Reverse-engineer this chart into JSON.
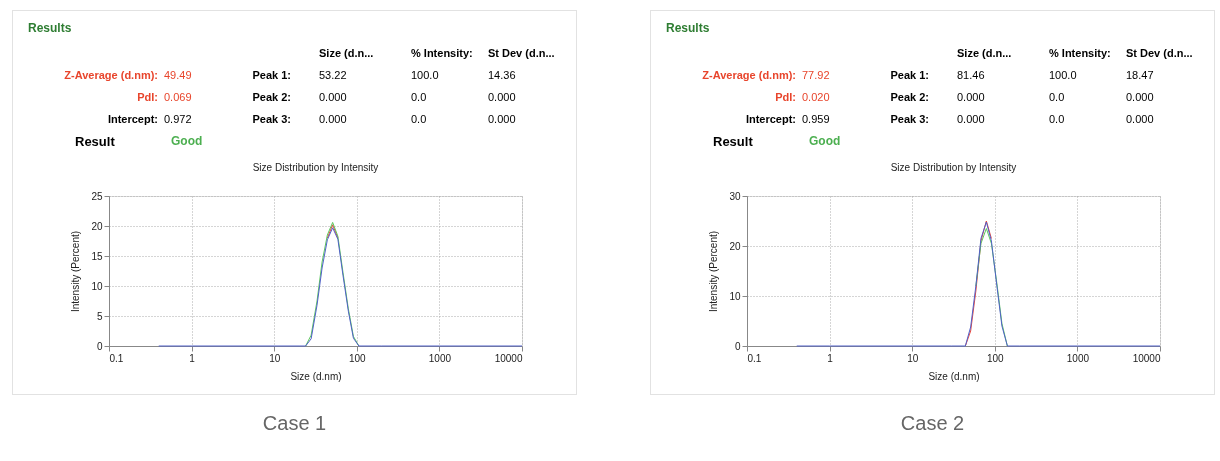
{
  "chart_data": [
    {
      "type": "other",
      "title": "Results",
      "annotations": [
        "Size (d.n...",
        "% Intensity:",
        "St Dev (d.n...",
        "Z-Average (d.nm):",
        "49.49",
        "Peak 1:",
        "53.22",
        "100.0",
        "14.36",
        "PdI:",
        "0.069",
        "Peak 2:",
        "0.000",
        "0.0",
        "0.000",
        "Intercept:",
        "0.972",
        "Peak 3:",
        "0.000",
        "0.0",
        "0.000",
        "Result",
        "Good"
      ]
    },
    {
      "type": "line",
      "title": "Size Distribution by Intensity",
      "xlabel": "Size (d.nm)",
      "ylabel": "Intensity (Percent)",
      "annotations": [
        "Case 1"
      ],
      "log": "x",
      "grid": true,
      "x": [
        0.4,
        1,
        10,
        20,
        24,
        28,
        33,
        38,
        44,
        51,
        59,
        68,
        79,
        91,
        106,
        200,
        1000,
        10000
      ],
      "xlim": [
        0.1,
        10000
      ],
      "xticks": [
        0.1,
        1,
        10,
        100,
        1000,
        10000
      ],
      "ylim": [
        0,
        25
      ],
      "yticks": [
        0,
        5,
        10,
        15,
        20,
        25
      ],
      "series": [
        {
          "color": "#e8453c",
          "values": [
            null,
            null,
            null,
            null,
            null,
            null,
            null,
            null,
            18,
            20.2,
            18,
            null,
            null,
            null,
            null,
            null,
            null,
            null
          ]
        },
        {
          "color": "#5cc85c",
          "values": [
            null,
            null,
            null,
            null,
            0,
            1.8,
            7.5,
            14,
            18.5,
            20.6,
            18.3,
            12.3,
            6.2,
            1.6,
            0,
            null,
            null,
            null
          ]
        },
        {
          "color": "#5060c8",
          "values": [
            0,
            0,
            0,
            0,
            0,
            1.2,
            6.8,
            13,
            17.7,
            19.7,
            17.8,
            11.8,
            5.8,
            1.3,
            0,
            0,
            0,
            0
          ]
        }
      ]
    },
    {
      "type": "other",
      "title": "Results",
      "annotations": [
        "Size (d.n...",
        "% Intensity:",
        "St Dev (d.n...",
        "Z-Average (d.nm):",
        "77.92",
        "Peak 1:",
        "81.46",
        "100.0",
        "18.47",
        "PdI:",
        "0.020",
        "Peak 2:",
        "0.000",
        "0.0",
        "0.000",
        "Intercept:",
        "0.959",
        "Peak 3:",
        "0.000",
        "0.0",
        "0.000",
        "Result",
        "Good"
      ]
    },
    {
      "type": "line",
      "title": "Size Distribution by Intensity",
      "xlabel": "Size (d.nm)",
      "ylabel": "Intensity (Percent)",
      "annotations": [
        "Case 2"
      ],
      "log": "x",
      "grid": true,
      "x": [
        0.4,
        1,
        10,
        30,
        44,
        51,
        59,
        68,
        79,
        91,
        106,
        122,
        142,
        200,
        1000,
        10000
      ],
      "xlim": [
        0.1,
        10000
      ],
      "xticks": [
        0.1,
        1,
        10,
        100,
        1000,
        10000
      ],
      "ylim": [
        0,
        30
      ],
      "yticks": [
        0,
        10,
        20,
        30
      ],
      "series": [
        {
          "color": "#e8453c",
          "values": [
            null,
            null,
            null,
            null,
            0,
            3,
            11,
            21,
            25,
            21.5,
            null,
            null,
            null,
            null,
            null,
            null
          ]
        },
        {
          "color": "#5cc85c",
          "values": [
            null,
            null,
            null,
            null,
            null,
            null,
            12,
            20.5,
            23.5,
            20.5,
            12.5,
            4.5,
            0,
            null,
            null,
            null
          ]
        },
        {
          "color": "#5060c8",
          "values": [
            0,
            0,
            0,
            0,
            0,
            3.8,
            12,
            21.5,
            24.8,
            21,
            12,
            4,
            0,
            0,
            0,
            0
          ]
        }
      ]
    }
  ]
}
